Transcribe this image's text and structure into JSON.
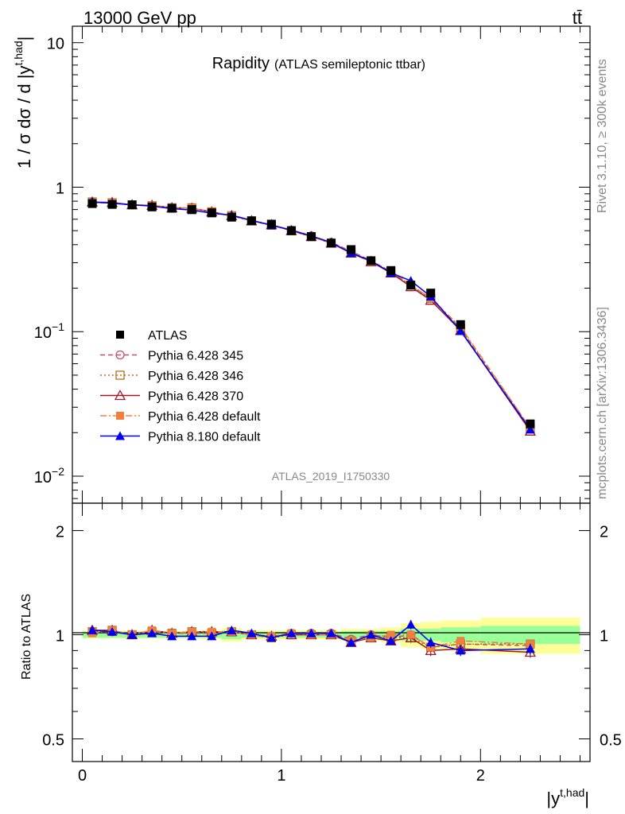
{
  "header": {
    "energy_label": "13000 GeV pp",
    "process_label": "tt̄"
  },
  "side": {
    "rivet": "Rivet 3.1.10, ≥ 300k events",
    "mcplots": "mcplots.cern.ch [arXiv:1306.3436]"
  },
  "chart_data": [
    {
      "type": "line",
      "title": "Rapidity",
      "subtitle": "(ATLAS semileptonic ttbar)",
      "watermark": "ATLAS_2019_I1750330",
      "xlabel_base": "|y",
      "xlabel_sup": "t,had",
      "xlabel_end": "|",
      "ylabel_pre": "1 / σ dσ / d |y",
      "ylabel_sup": "t,had",
      "ylabel_end": "|",
      "yscale": "log",
      "xlim": [
        -0.05,
        2.55
      ],
      "ylim": [
        0.0065,
        13
      ],
      "y_ticks": [
        {
          "v": 10,
          "label": "10"
        },
        {
          "v": 1,
          "label": "1"
        },
        {
          "v": 0.1,
          "label": "10",
          "sup": "−1"
        },
        {
          "v": 0.01,
          "label": "10",
          "sup": "−2"
        }
      ],
      "x": [
        0.05,
        0.15,
        0.25,
        0.35,
        0.45,
        0.55,
        0.65,
        0.75,
        0.85,
        0.95,
        1.05,
        1.15,
        1.25,
        1.35,
        1.45,
        1.55,
        1.65,
        1.75,
        1.9,
        2.25
      ],
      "x_bins": [
        [
          0,
          0.1
        ],
        [
          0.1,
          0.2
        ],
        [
          0.2,
          0.3
        ],
        [
          0.3,
          0.4
        ],
        [
          0.4,
          0.5
        ],
        [
          0.5,
          0.6
        ],
        [
          0.6,
          0.7
        ],
        [
          0.7,
          0.8
        ],
        [
          0.8,
          0.9
        ],
        [
          0.9,
          1.0
        ],
        [
          1.0,
          1.1
        ],
        [
          1.1,
          1.2
        ],
        [
          1.2,
          1.3
        ],
        [
          1.3,
          1.4
        ],
        [
          1.4,
          1.5
        ],
        [
          1.5,
          1.6
        ],
        [
          1.6,
          1.7
        ],
        [
          1.7,
          1.8
        ],
        [
          1.8,
          2.0
        ],
        [
          2.0,
          2.5
        ]
      ],
      "legend_position": "lower-left",
      "series": [
        {
          "name": "ATLAS",
          "color": "#000000",
          "marker": "square-filled",
          "line": "none",
          "values": [
            0.77,
            0.76,
            0.755,
            0.73,
            0.715,
            0.7,
            0.665,
            0.62,
            0.585,
            0.555,
            0.5,
            0.455,
            0.41,
            0.37,
            0.31,
            0.265,
            0.21,
            0.185,
            0.112,
            0.023
          ]
        },
        {
          "name": "Pythia 6.428 345",
          "color": "#c0506a",
          "marker": "circle-open",
          "line": "dashed",
          "values": [
            0.785,
            0.775,
            0.755,
            0.745,
            0.72,
            0.71,
            0.675,
            0.635,
            0.585,
            0.545,
            0.505,
            0.46,
            0.415,
            0.36,
            0.31,
            0.26,
            0.21,
            0.17,
            0.105,
            0.0215
          ]
        },
        {
          "name": "Pythia 6.428 346",
          "color": "#b07020",
          "marker": "square-open",
          "line": "dotted",
          "values": [
            0.79,
            0.78,
            0.755,
            0.745,
            0.72,
            0.72,
            0.675,
            0.635,
            0.585,
            0.545,
            0.5,
            0.455,
            0.41,
            0.355,
            0.305,
            0.26,
            0.205,
            0.17,
            0.105,
            0.0215
          ]
        },
        {
          "name": "Pythia 6.428 370",
          "color": "#a01828",
          "marker": "triangle-open",
          "line": "solid",
          "values": [
            0.79,
            0.785,
            0.755,
            0.75,
            0.72,
            0.715,
            0.675,
            0.635,
            0.585,
            0.55,
            0.5,
            0.455,
            0.41,
            0.35,
            0.305,
            0.255,
            0.205,
            0.165,
            0.102,
            0.0205
          ]
        },
        {
          "name": "Pythia 6.428 default",
          "color": "#f08040",
          "marker": "square-filled",
          "line": "dashdot",
          "values": [
            0.78,
            0.78,
            0.755,
            0.75,
            0.72,
            0.715,
            0.675,
            0.635,
            0.585,
            0.55,
            0.505,
            0.455,
            0.41,
            0.355,
            0.305,
            0.265,
            0.21,
            0.17,
            0.108,
            0.0215
          ]
        },
        {
          "name": "Pythia 8.180 default",
          "color": "#0000ee",
          "marker": "triangle-filled",
          "line": "solid",
          "values": [
            0.79,
            0.775,
            0.755,
            0.74,
            0.71,
            0.695,
            0.66,
            0.64,
            0.59,
            0.545,
            0.505,
            0.46,
            0.415,
            0.35,
            0.31,
            0.255,
            0.225,
            0.175,
            0.101,
            0.021
          ]
        }
      ]
    },
    {
      "type": "line",
      "ylabel": "Ratio to ATLAS",
      "yscale": "log",
      "ylim": [
        0.43,
        2.4
      ],
      "y_ticks": [
        {
          "v": 2,
          "label": "2"
        },
        {
          "v": 1,
          "label": "1"
        },
        {
          "v": 0.5,
          "label": "0.5"
        }
      ],
      "x_ticks": [
        {
          "v": 0,
          "label": "0"
        },
        {
          "v": 1,
          "label": "1"
        },
        {
          "v": 2,
          "label": "2"
        }
      ],
      "band_stat": [
        0.02,
        0.02,
        0.02,
        0.02,
        0.02,
        0.02,
        0.02,
        0.03,
        0.02,
        0.02,
        0.02,
        0.02,
        0.02,
        0.025,
        0.025,
        0.025,
        0.04,
        0.04,
        0.05,
        0.06
      ],
      "band_total": [
        0.025,
        0.025,
        0.025,
        0.025,
        0.025,
        0.025,
        0.03,
        0.045,
        0.03,
        0.03,
        0.03,
        0.03,
        0.03,
        0.04,
        0.04,
        0.05,
        0.08,
        0.09,
        0.1,
        0.12
      ],
      "series": [
        {
          "name": "Pythia 6.428 345",
          "values": [
            1.02,
            1.02,
            1.0,
            1.02,
            1.01,
            1.01,
            1.01,
            1.02,
            1.0,
            0.98,
            1.01,
            1.01,
            1.01,
            0.97,
            1.0,
            0.98,
            1.0,
            0.92,
            0.94,
            0.93
          ]
        },
        {
          "name": "Pythia 6.428 346",
          "values": [
            1.02,
            1.03,
            1.0,
            1.02,
            1.01,
            1.02,
            1.01,
            1.02,
            1.0,
            0.98,
            1.0,
            1.0,
            1.0,
            0.96,
            0.99,
            0.98,
            0.98,
            0.92,
            0.94,
            0.94
          ]
        },
        {
          "name": "Pythia 6.428 370",
          "values": [
            1.03,
            1.03,
            1.0,
            1.03,
            1.01,
            1.02,
            1.02,
            1.02,
            1.0,
            0.99,
            1.0,
            1.0,
            1.0,
            0.95,
            0.98,
            0.96,
            0.98,
            0.9,
            0.91,
            0.89
          ]
        },
        {
          "name": "Pythia 6.428 default",
          "values": [
            1.01,
            1.03,
            1.0,
            1.03,
            1.01,
            1.02,
            1.02,
            1.02,
            1.0,
            0.99,
            1.01,
            1.0,
            1.0,
            0.96,
            0.98,
            1.0,
            1.0,
            0.92,
            0.96,
            0.94
          ]
        },
        {
          "name": "Pythia 8.180 default",
          "values": [
            1.03,
            1.02,
            1.0,
            1.01,
            0.99,
            0.99,
            0.99,
            1.03,
            1.01,
            0.98,
            1.01,
            1.01,
            1.01,
            0.95,
            1.0,
            0.96,
            1.07,
            0.95,
            0.9,
            0.91
          ]
        }
      ]
    }
  ]
}
